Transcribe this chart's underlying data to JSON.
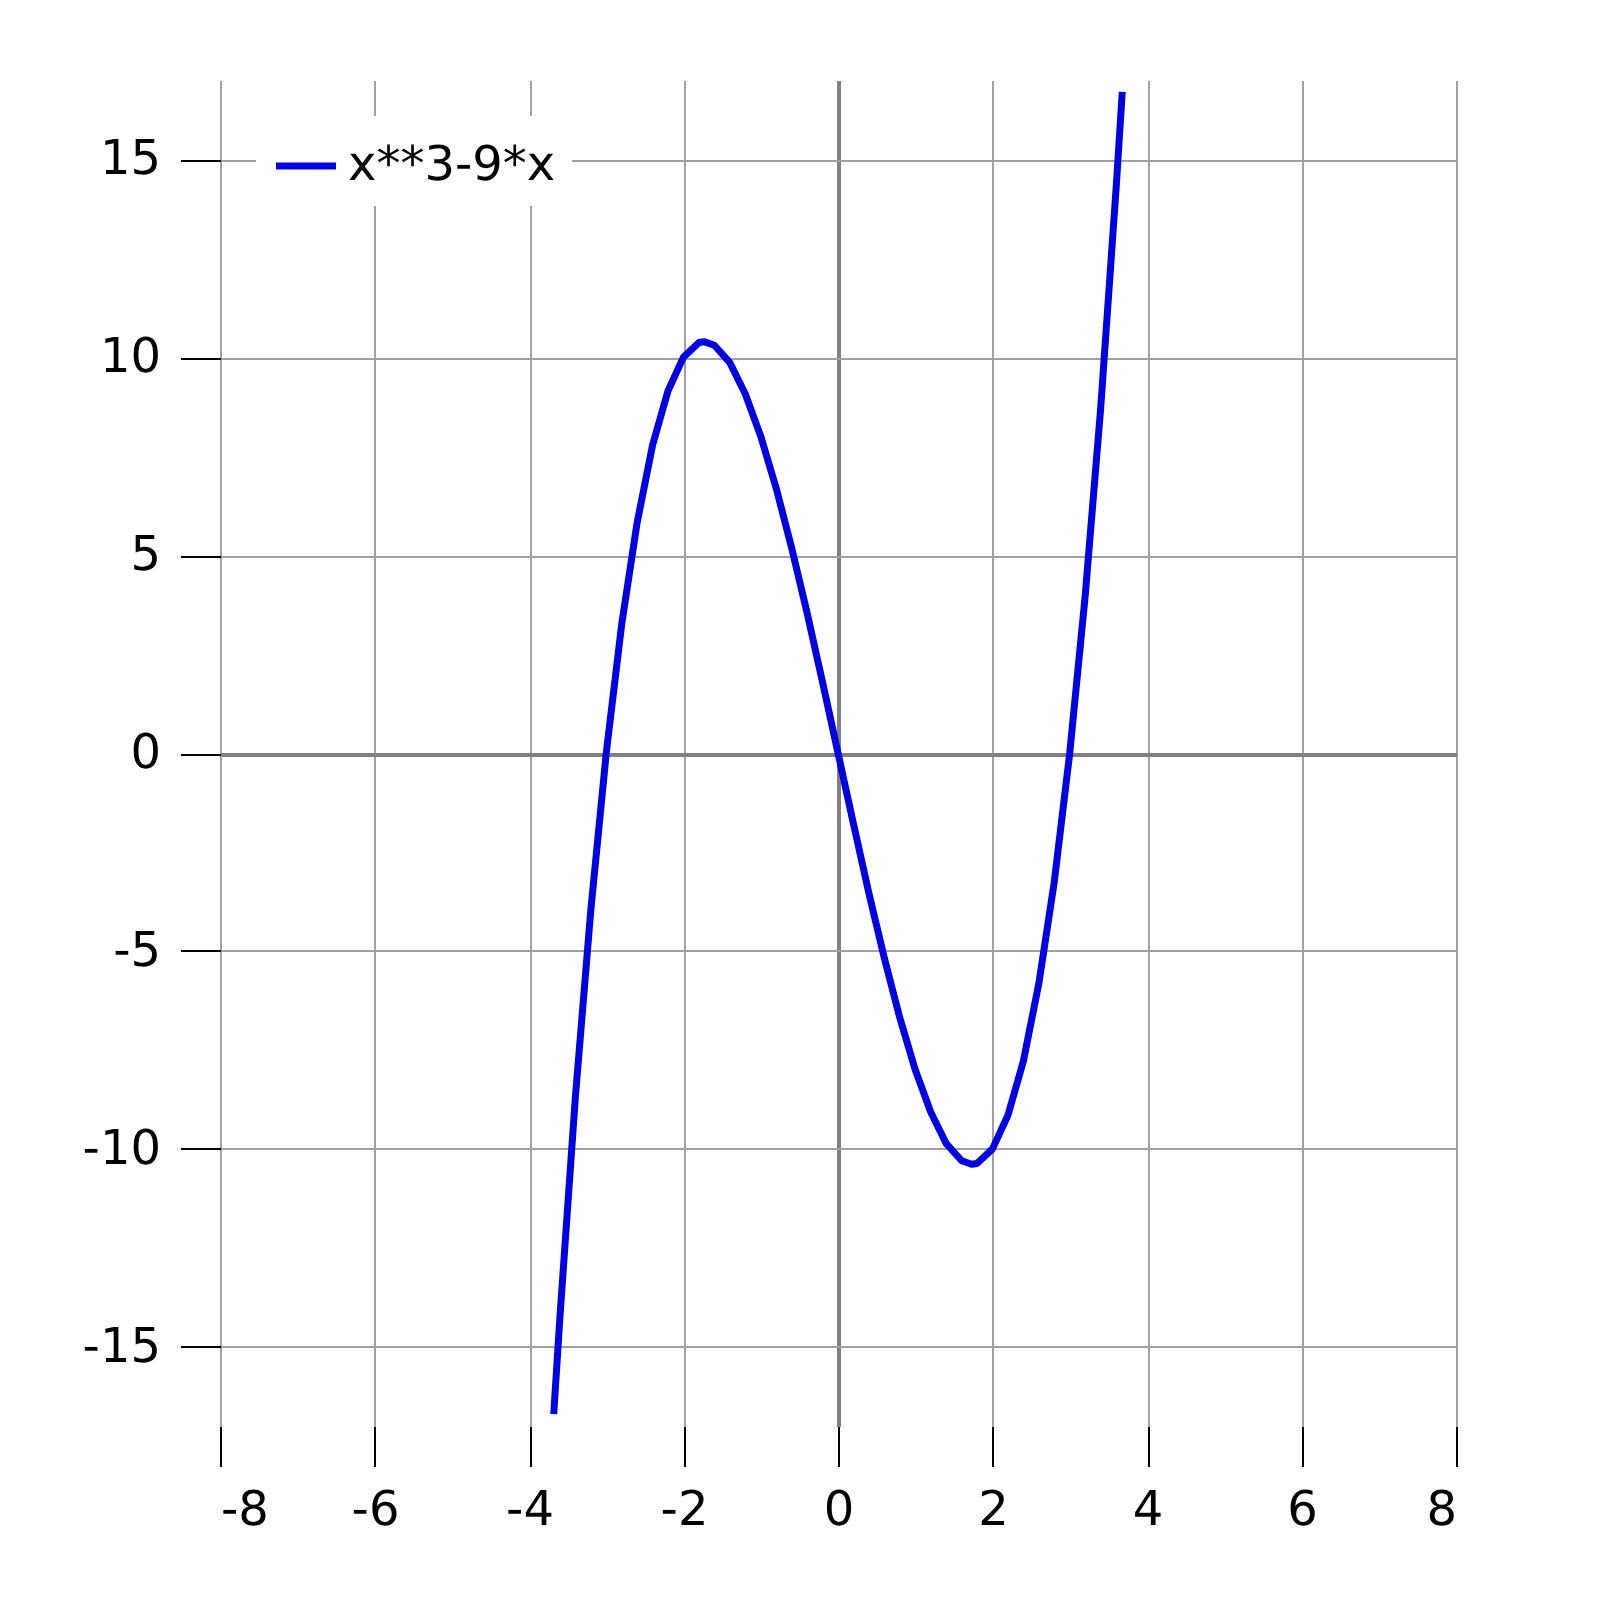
{
  "chart_data": {
    "type": "line",
    "xlim": [
      -8,
      8
    ],
    "ylim": [
      -17,
      17
    ],
    "xticks": [
      -8,
      -6,
      -4,
      -2,
      0,
      2,
      4,
      6,
      8
    ],
    "yticks": [
      -15,
      -10,
      -5,
      0,
      5,
      10,
      15
    ],
    "grid": true,
    "legend": "top left",
    "line_style": "solid",
    "marker": "none",
    "series": [
      {
        "name": "x**3-9*x",
        "color": "#0000e0",
        "x": [
          -3.68,
          -3.6,
          -3.4,
          -3.2,
          -3.0,
          -2.8,
          -2.6,
          -2.4,
          -2.2,
          -2.0,
          -1.8,
          -1.73,
          -1.6,
          -1.4,
          -1.2,
          -1.0,
          -0.8,
          -0.6,
          -0.4,
          -0.2,
          0,
          0.2,
          0.4,
          0.6,
          0.8,
          1.0,
          1.2,
          1.4,
          1.6,
          1.73,
          1.8,
          2.0,
          2.2,
          2.4,
          2.6,
          2.8,
          3.0,
          3.2,
          3.4,
          3.6,
          3.68
        ],
        "values": [
          -16.7,
          -14.26,
          -8.7,
          -3.97,
          0,
          3.25,
          5.82,
          7.78,
          9.15,
          10,
          10.37,
          10.39,
          10.3,
          9.86,
          9.07,
          8,
          6.69,
          5.18,
          3.54,
          1.79,
          0,
          -1.79,
          -3.54,
          -5.18,
          -6.69,
          -8,
          -9.07,
          -9.86,
          -10.3,
          -10.39,
          -10.37,
          -10,
          -9.15,
          -7.78,
          -5.82,
          -3.25,
          0,
          3.97,
          8.7,
          14.26,
          16.7
        ]
      }
    ]
  }
}
